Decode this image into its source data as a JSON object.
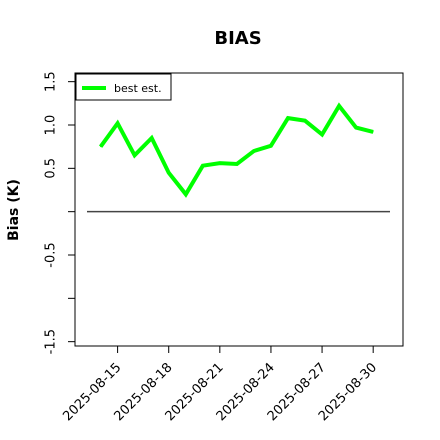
{
  "chart_data": {
    "type": "line",
    "title": "BIAS",
    "xlabel": "",
    "ylabel": "Bias (K)",
    "x": [
      "2025-08-14",
      "2025-08-15",
      "2025-08-16",
      "2025-08-17",
      "2025-08-18",
      "2025-08-19",
      "2025-08-20",
      "2025-08-21",
      "2025-08-22",
      "2025-08-23",
      "2025-08-24",
      "2025-08-25",
      "2025-08-26",
      "2025-08-27",
      "2025-08-28",
      "2025-08-29",
      "2025-08-30"
    ],
    "series": [
      {
        "name": "best est.",
        "color": "#00ff00",
        "values": [
          0.75,
          1.02,
          0.65,
          0.85,
          0.45,
          0.2,
          0.53,
          0.56,
          0.55,
          0.7,
          0.76,
          1.08,
          1.05,
          0.89,
          1.22,
          0.97,
          0.92
        ]
      }
    ],
    "reference_line": {
      "y": 0,
      "color": "#444444"
    },
    "x_tick_labels": [
      "2025-08-15",
      "2025-08-18",
      "2025-08-21",
      "2025-08-24",
      "2025-08-27",
      "2025-08-30"
    ],
    "y_ticks": [
      -1.5,
      -1.0,
      -0.5,
      0.0,
      0.5,
      1.0,
      1.5
    ],
    "y_tick_labels": [
      "-1.5",
      "",
      "-0.5",
      "",
      "0.5",
      "1.0",
      "1.5"
    ],
    "ylim": [
      -1.55,
      1.6
    ],
    "xlim": [
      "2025-08-12T12:00",
      "2025-08-31T18:00"
    ],
    "legend_position": "top-left",
    "grid": false
  }
}
